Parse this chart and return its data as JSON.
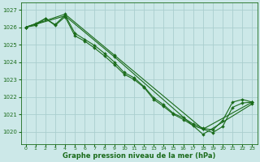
{
  "title": "Graphe pression niveau de la mer (hPa)",
  "bg_color": "#cce8e8",
  "grid_color": "#aacece",
  "line_color": "#1a6b1a",
  "markersize": 2.0,
  "linewidth": 0.8,
  "xlim": [
    -0.5,
    23.5
  ],
  "ylim": [
    1019.3,
    1027.4
  ],
  "yticks": [
    1020,
    1021,
    1022,
    1023,
    1024,
    1025,
    1026,
    1027
  ],
  "xticks": [
    0,
    1,
    2,
    3,
    4,
    5,
    6,
    7,
    8,
    9,
    10,
    11,
    12,
    13,
    14,
    15,
    16,
    17,
    18,
    19,
    20,
    21,
    22,
    23
  ],
  "series": [
    {
      "x": [
        0,
        1,
        2,
        3,
        4,
        5,
        6,
        7,
        8,
        9,
        10,
        11,
        12,
        13,
        14,
        15,
        16,
        17,
        18,
        19,
        20,
        21,
        22,
        23
      ],
      "y": [
        1026.0,
        1026.1,
        1026.5,
        1026.1,
        1026.6,
        1025.5,
        1025.2,
        1024.8,
        1024.35,
        1023.85,
        1023.3,
        1023.0,
        1022.55,
        1021.85,
        1021.45,
        1021.0,
        1020.7,
        1020.35,
        1020.15,
        1019.95,
        1020.3,
        1021.4,
        1021.65,
        1021.7
      ],
      "every": 1
    },
    {
      "x": [
        0,
        1,
        2,
        3,
        4,
        5,
        6,
        7,
        8,
        9,
        10,
        11,
        12,
        13,
        14,
        15,
        16,
        17,
        18,
        19,
        20,
        21,
        22,
        23
      ],
      "y": [
        1026.0,
        1026.2,
        1026.5,
        1026.15,
        1026.7,
        1025.65,
        1025.3,
        1024.95,
        1024.5,
        1024.0,
        1023.4,
        1023.1,
        1022.6,
        1021.95,
        1021.55,
        1021.05,
        1020.8,
        1020.45,
        1020.2,
        1020.1,
        1020.65,
        1021.7,
        1021.85,
        1021.7
      ],
      "every": 1
    },
    {
      "x": [
        0,
        4,
        9,
        18,
        23
      ],
      "y": [
        1026.0,
        1026.65,
        1024.3,
        1019.85,
        1021.6
      ],
      "every": 1
    },
    {
      "x": [
        0,
        4,
        9,
        18,
        23
      ],
      "y": [
        1026.0,
        1026.75,
        1024.4,
        1020.15,
        1021.7
      ],
      "every": 1
    }
  ]
}
